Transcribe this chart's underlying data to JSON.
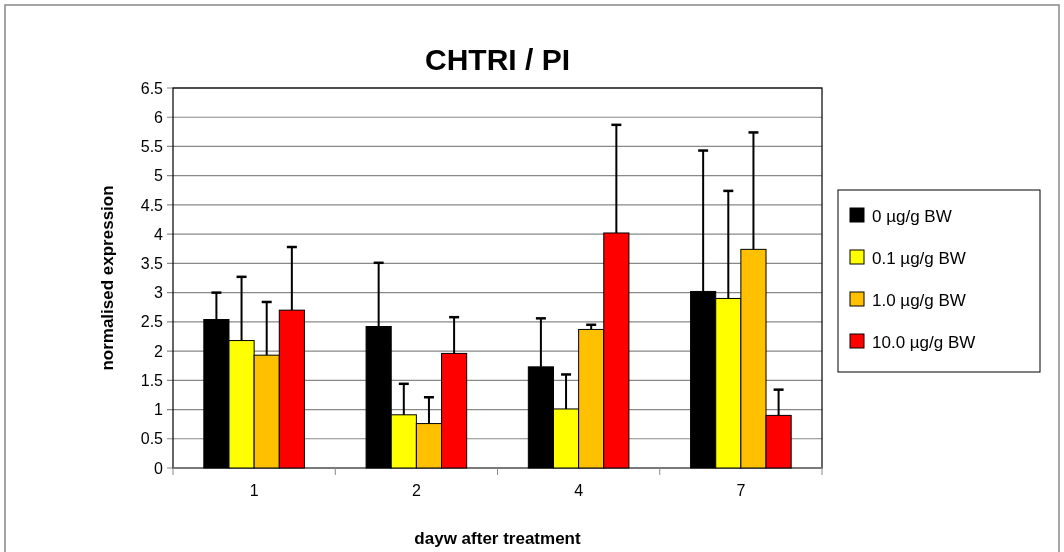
{
  "chart_data": {
    "type": "bar",
    "title": "CHTRI / PI",
    "xlabel": "dayw after treatment",
    "ylabel": "normalised expression",
    "categories": [
      "1",
      "2",
      "4",
      "7"
    ],
    "series": [
      {
        "name": "0 µg/g BW",
        "color": "#000000",
        "values": [
          2.54,
          2.42,
          1.73,
          3.02
        ],
        "errors": [
          [
            2.54,
            3.0
          ],
          [
            2.42,
            3.51
          ],
          [
            1.73,
            2.56
          ],
          [
            3.02,
            5.43
          ]
        ]
      },
      {
        "name": "0.1 µg/g BW",
        "color": "#ffff00",
        "values": [
          2.18,
          0.91,
          1.01,
          2.9
        ],
        "errors": [
          [
            2.18,
            3.27
          ],
          [
            0.91,
            1.44
          ],
          [
            1.01,
            1.6
          ],
          [
            2.9,
            4.74
          ]
        ]
      },
      {
        "name": "1.0 µg/g BW",
        "color": "#ffc000",
        "values": [
          1.93,
          0.76,
          2.37,
          3.74
        ],
        "errors": [
          [
            1.93,
            2.84
          ],
          [
            0.76,
            1.21
          ],
          [
            2.37,
            2.45
          ],
          [
            3.74,
            5.74
          ]
        ]
      },
      {
        "name": "10.0 µg/g BW",
        "color": "#ff0000",
        "values": [
          2.7,
          1.96,
          4.02,
          0.9
        ],
        "errors": [
          [
            2.7,
            3.78
          ],
          [
            1.96,
            2.58
          ],
          [
            4.02,
            5.87
          ],
          [
            0.9,
            1.34
          ]
        ]
      }
    ],
    "ylim": [
      0,
      6.5
    ],
    "yticks": [
      0,
      0.5,
      1,
      1.5,
      2,
      2.5,
      3,
      3.5,
      4,
      4.5,
      5,
      5.5,
      6,
      6.5
    ],
    "grid": "y",
    "legend": "right"
  }
}
